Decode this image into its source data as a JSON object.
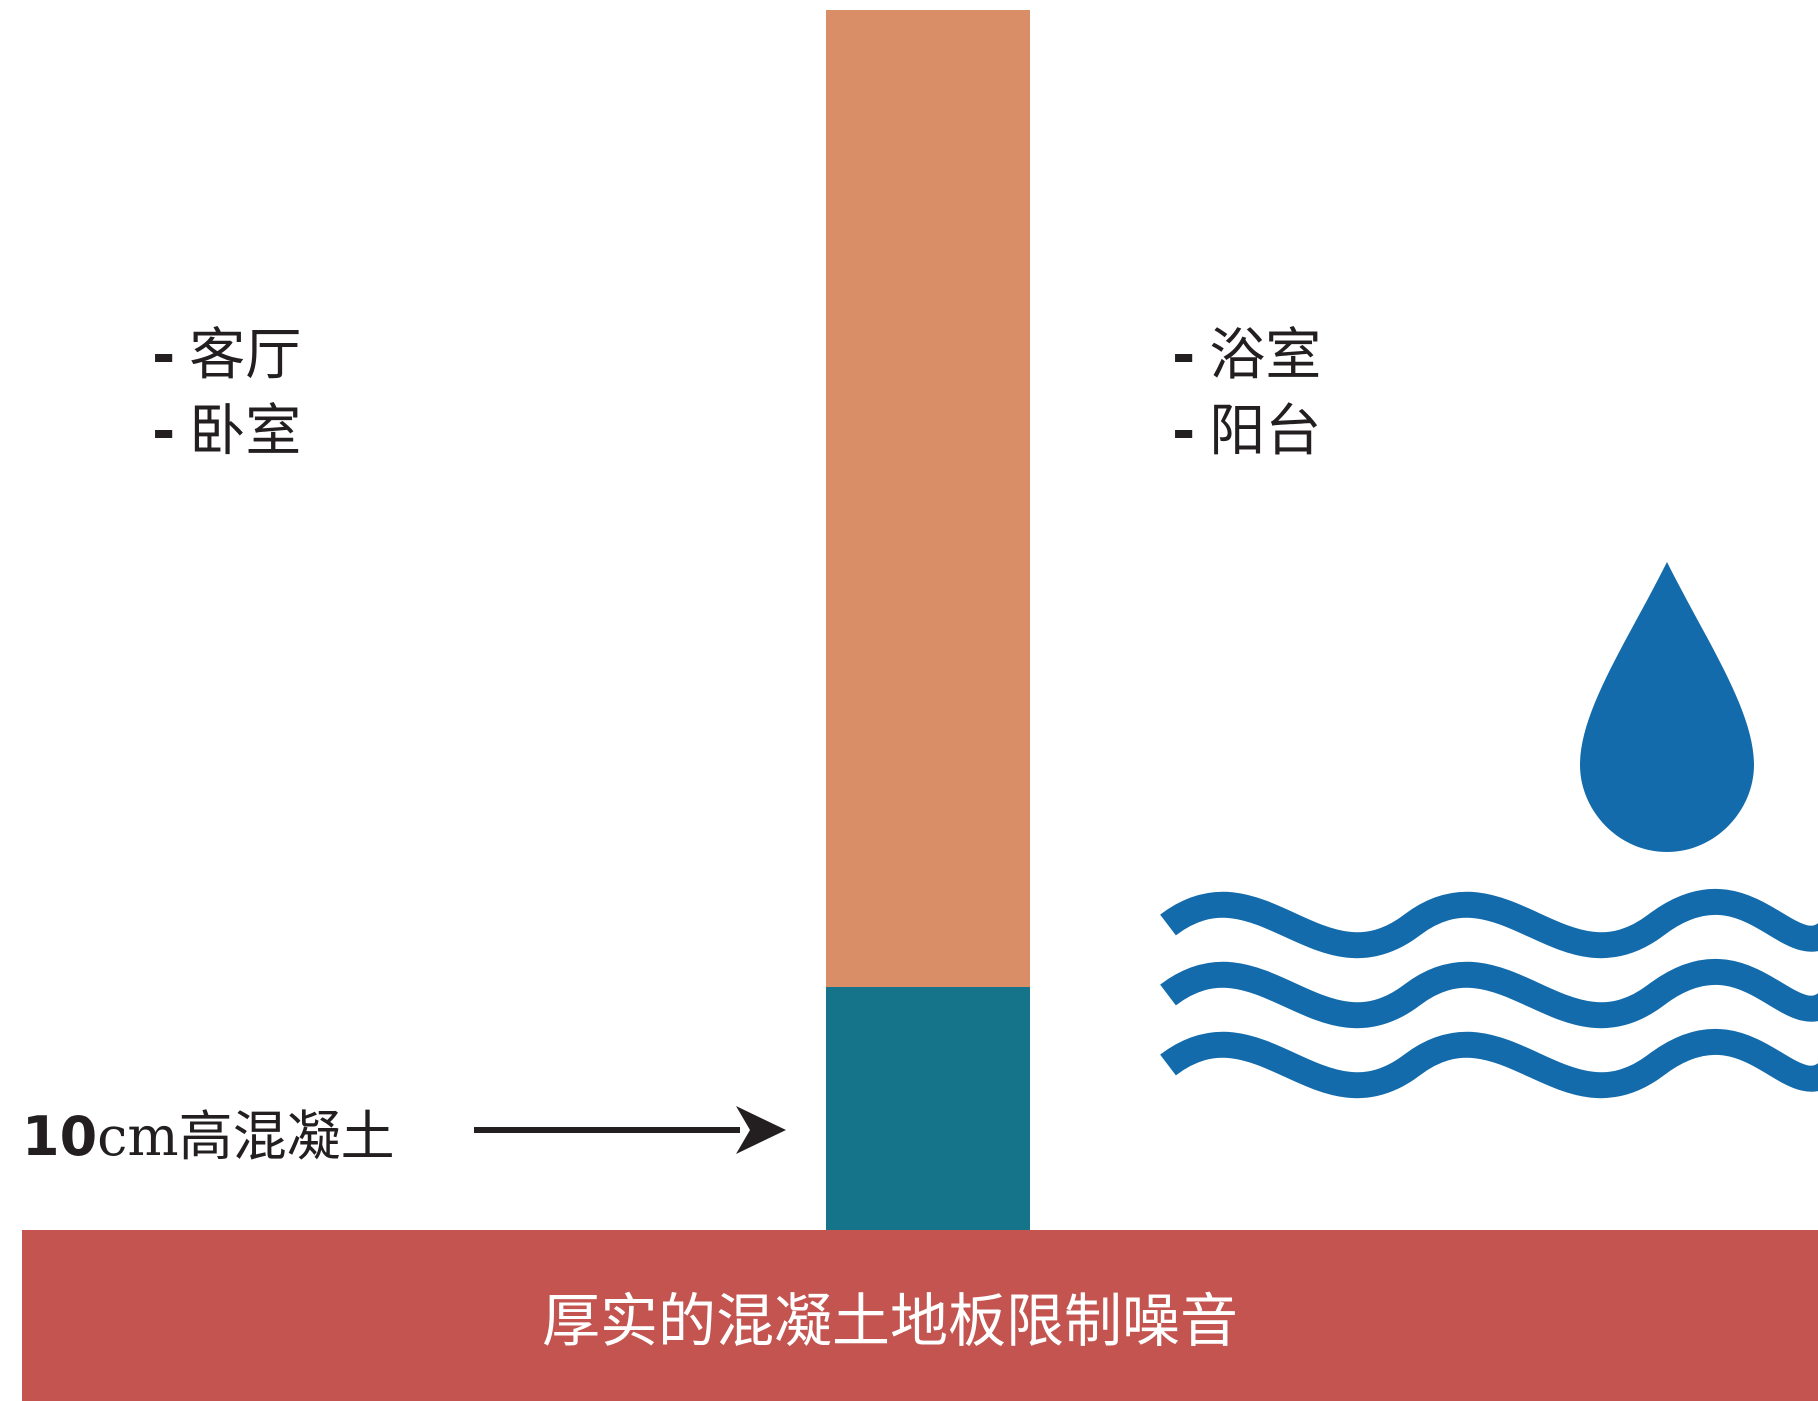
{
  "left_rooms": [
    {
      "dash": "-",
      "name": "客厅"
    },
    {
      "dash": "-",
      "name": "卧室"
    }
  ],
  "right_rooms": [
    {
      "dash": "-",
      "name": "浴室"
    },
    {
      "dash": "-",
      "name": "阳台"
    }
  ],
  "curb": {
    "number": "10",
    "text": "cm高混凝土"
  },
  "floor_caption": "厚实的混凝土地板限制噪音",
  "icons": {
    "water": "water-drop-and-waves-icon",
    "arrow": "arrow-right-icon"
  },
  "colors": {
    "wall_upper": "#d98e68",
    "wall_base": "#16748a",
    "floor": "#c35450",
    "water": "#136bab",
    "text": "#231f20"
  }
}
